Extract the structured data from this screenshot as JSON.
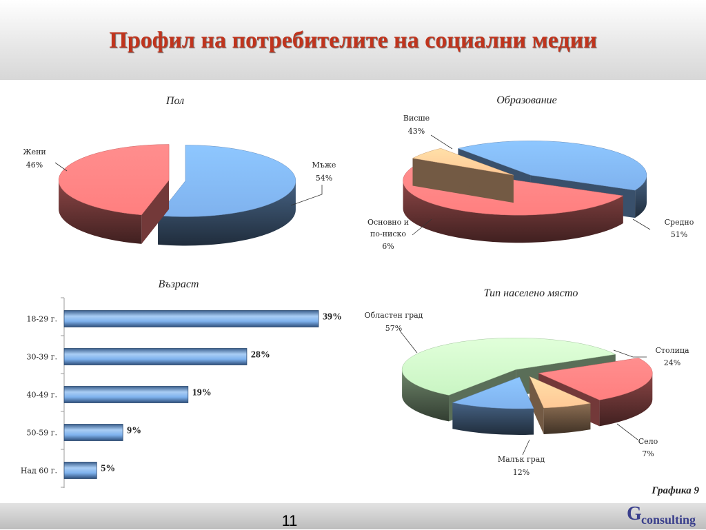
{
  "page": {
    "title": "Профил на потребителите на социални медии",
    "figure_label": "Графика 9",
    "page_number": "11",
    "logo": {
      "initial": "G",
      "rest": "consulting"
    }
  },
  "colors": {
    "blue": "#7fb2ee",
    "red": "#ff7f7f",
    "green": "#c9f5c3",
    "peach": "#ffc896",
    "title_red": "#c0341d"
  },
  "chart_data": [
    {
      "type": "pie",
      "title": "Пол",
      "slices": [
        {
          "label": "Мъже",
          "value": 54,
          "pct": "54%",
          "color": "#7fb2ee"
        },
        {
          "label": "Жени",
          "value": 46,
          "pct": "46%",
          "color": "#ff7f7f"
        }
      ]
    },
    {
      "type": "pie",
      "title": "Образование",
      "slices": [
        {
          "label": "Висше",
          "value": 43,
          "pct": "43%",
          "color": "#7fb2ee"
        },
        {
          "label": "Средно",
          "value": 51,
          "pct": "51%",
          "color": "#ff7f7f"
        },
        {
          "label_lines": [
            "Основно и",
            "по-ниско"
          ],
          "value": 6,
          "pct": "6%",
          "color": "#ffc896"
        }
      ]
    },
    {
      "type": "bar",
      "title": "Възраст",
      "categories": [
        "18-29 г.",
        "30-39 г.",
        "40-49 г.",
        "50-59 г.",
        "Над 60 г."
      ],
      "values": [
        39,
        28,
        19,
        9,
        5
      ],
      "value_labels": [
        "39%",
        "28%",
        "19%",
        "9%",
        "5%"
      ],
      "xlim": [
        0,
        45
      ]
    },
    {
      "type": "pie",
      "title": "Тип населено място",
      "slices": [
        {
          "label": "Областен град",
          "value": 57,
          "pct": "57%",
          "color": "#c9f5c3"
        },
        {
          "label": "Столица",
          "value": 24,
          "pct": "24%",
          "color": "#ff7f7f"
        },
        {
          "label": "Село",
          "value": 7,
          "pct": "7%",
          "color": "#ffc896"
        },
        {
          "label": "Малък град",
          "value": 12,
          "pct": "12%",
          "color": "#7fb2ee"
        }
      ]
    }
  ]
}
